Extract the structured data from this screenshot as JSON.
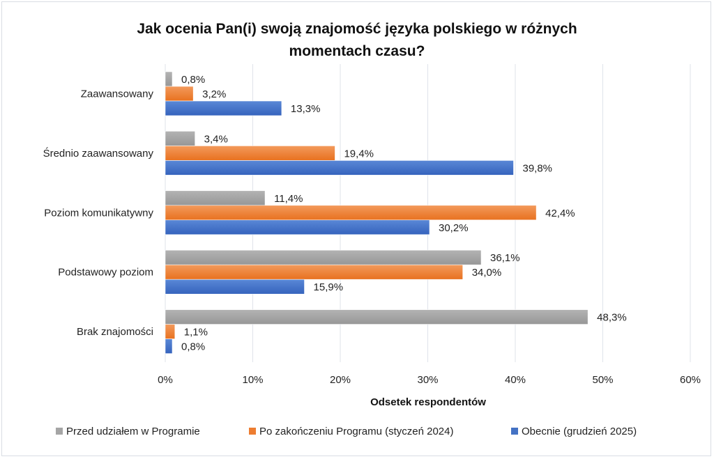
{
  "chart_data": {
    "type": "bar",
    "orientation": "horizontal",
    "title": "Jak ocenia Pan(i) swoją znajomość języka polskiego w różnych momentach czasu?",
    "title_lines": [
      "Jak ocenia Pan(i) swoją znajomość języka polskiego w różnych",
      "momentach czasu?"
    ],
    "xlabel": "Odsetek respondentów",
    "ylabel": "",
    "xlim": [
      0,
      60
    ],
    "x_ticks": [
      0,
      10,
      20,
      30,
      40,
      50,
      60
    ],
    "x_tick_labels": [
      "0%",
      "10%",
      "20%",
      "30%",
      "40%",
      "50%",
      "60%"
    ],
    "grid": true,
    "legend_position": "bottom",
    "categories": [
      "Zaawansowany",
      "Średnio zaawansowany",
      "Poziom komunikatywny",
      "Podstawowy poziom",
      "Brak znajomości"
    ],
    "series": [
      {
        "name": "Przed udziałem w Programie",
        "color": "#a5a5a5",
        "values": [
          0.8,
          3.4,
          11.4,
          36.1,
          48.3
        ],
        "labels": [
          "0,8%",
          "3,4%",
          "11,4%",
          "36,1%",
          "48,3%"
        ]
      },
      {
        "name": "Po zakończeniu Programu (styczeń 2024)",
        "color": "#ed7d31",
        "values": [
          3.2,
          19.4,
          42.4,
          34.0,
          1.1
        ],
        "labels": [
          "3,2%",
          "19,4%",
          "42,4%",
          "34,0%",
          "1,1%"
        ]
      },
      {
        "name": "Obecnie (grudzień 2025)",
        "color": "#4472c4",
        "values": [
          13.3,
          39.8,
          30.2,
          15.9,
          0.8
        ],
        "labels": [
          "13,3%",
          "39,8%",
          "30,2%",
          "15,9%",
          "0,8%"
        ]
      }
    ]
  }
}
